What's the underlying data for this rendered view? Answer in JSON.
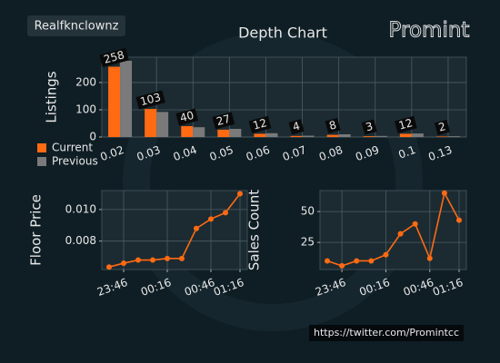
{
  "header": {
    "user": "Realfknclownz",
    "logo": "Promint"
  },
  "chart_data": [
    {
      "type": "bar",
      "title": "Depth Chart",
      "ylabel": "Listings",
      "categories": [
        "0.02",
        "0.03",
        "0.04",
        "0.05",
        "0.06",
        "0.07",
        "0.08",
        "0.09",
        "0.1",
        "0.13"
      ],
      "series": [
        {
          "name": "Current",
          "color": "#ff6a13",
          "values": [
            258,
            103,
            40,
            27,
            12,
            4,
            8,
            3,
            12,
            2
          ]
        },
        {
          "name": "Previous",
          "color": "#7a7a7a",
          "values": [
            280,
            92,
            36,
            30,
            14,
            5,
            10,
            4,
            13,
            3
          ]
        }
      ],
      "ylim": [
        0,
        293
      ],
      "yticks": [
        0,
        100,
        200
      ],
      "grid": true,
      "legend": "lower left",
      "data_labels": true
    },
    {
      "type": "line",
      "ylabel": "Floor Price",
      "categories": [
        null,
        "23:46",
        null,
        null,
        "00:16",
        null,
        null,
        "00:46",
        null,
        "01:16"
      ],
      "values": [
        0.00636,
        0.0066,
        0.0068,
        0.0068,
        0.0069,
        0.0069,
        0.0088,
        0.0094,
        0.0098,
        0.011
      ],
      "color": "#ff6a13",
      "ylim": [
        0.0062,
        0.0112
      ],
      "yticks": [
        0.008,
        {
          "value": 0.01,
          "label": "0.010"
        }
      ],
      "grid": true
    },
    {
      "type": "line",
      "ylabel": "Sales Count",
      "categories": [
        null,
        "23:46",
        null,
        null,
        "00:16",
        null,
        null,
        "00:46",
        null,
        "01:16"
      ],
      "values": [
        10,
        6,
        10,
        10,
        15,
        32,
        40,
        12,
        65,
        43
      ],
      "color": "#ff6a13",
      "ylim": [
        3,
        67
      ],
      "yticks": [
        25,
        50
      ],
      "grid": true
    }
  ],
  "footer": {
    "link": "https://twitter.com/Promintcc"
  }
}
